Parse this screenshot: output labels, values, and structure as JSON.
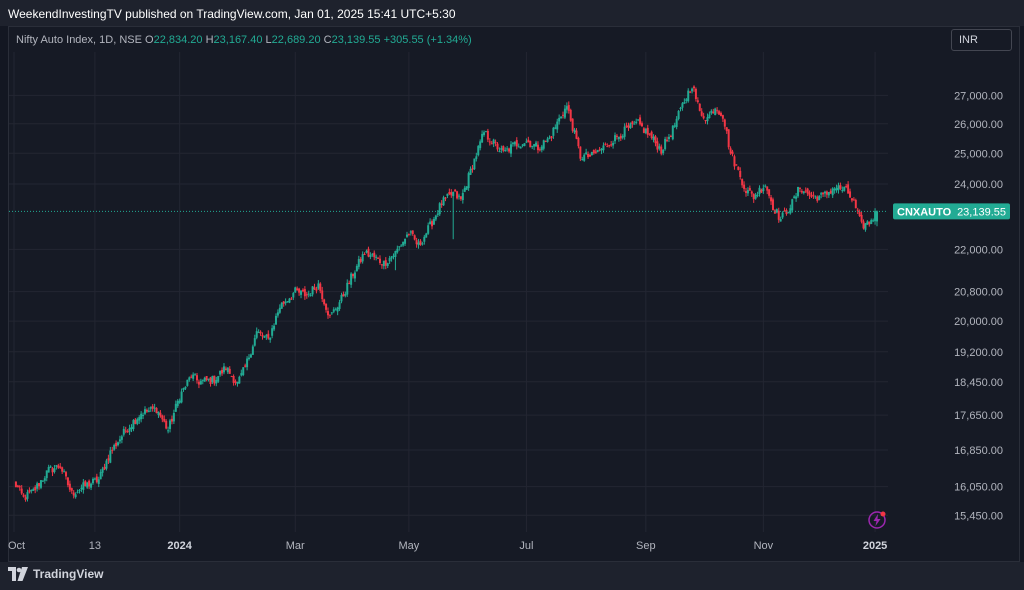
{
  "header": {
    "published_text": "WeekendInvestingTV published on TradingView.com, Jan 01, 2025 15:41 UTC+5:30"
  },
  "legend": {
    "symbol": "Nifty Auto Index, 1D, NSE",
    "open_key": "O",
    "open": "22,834.20",
    "high_key": "H",
    "high": "23,167.40",
    "low_key": "L",
    "low": "22,689.20",
    "close_key": "C",
    "close": "23,139.55",
    "change": "+305.55 (+1.34%)"
  },
  "currency": "INR",
  "price_tag": {
    "symbol": "CNXAUTO",
    "value": "23,139.55"
  },
  "footer": {
    "brand": "TradingView"
  },
  "colors": {
    "background": "#131722",
    "up": "#22ab94",
    "down": "#f23645",
    "grid": "#232632",
    "axis_text": "#b2b5be"
  },
  "icons": {
    "brand": "tradingview-logo-icon",
    "alert": "lightning-icon"
  },
  "chart_data": {
    "type": "candlestick",
    "scale": "log",
    "title": "Nifty Auto Index, 1D, NSE",
    "ylabel": "",
    "ylim": [
      15150,
      28300
    ],
    "y_ticks": [
      {
        "value": 27000,
        "label": "27,000.00"
      },
      {
        "value": 26000,
        "label": "26,000.00"
      },
      {
        "value": 25000,
        "label": "25,000.00"
      },
      {
        "value": 24000,
        "label": "24,000.00"
      },
      {
        "value": 22000,
        "label": "22,000.00"
      },
      {
        "value": 20800,
        "label": "20,800.00"
      },
      {
        "value": 20000,
        "label": "20,000.00"
      },
      {
        "value": 19200,
        "label": "19,200.00"
      },
      {
        "value": 18450,
        "label": "18,450.00"
      },
      {
        "value": 17650,
        "label": "17,650.00"
      },
      {
        "value": 16850,
        "label": "16,850.00"
      },
      {
        "value": 16050,
        "label": "16,050.00"
      },
      {
        "value": 15450,
        "label": "15,450.00"
      }
    ],
    "x_ticks": [
      {
        "label": "Oct",
        "bold": false,
        "day": 0
      },
      {
        "label": "13",
        "bold": false,
        "day": 42
      },
      {
        "label": "2024",
        "bold": true,
        "day": 86
      },
      {
        "label": "Mar",
        "bold": false,
        "day": 146
      },
      {
        "label": "May",
        "bold": false,
        "day": 205
      },
      {
        "label": "Jul",
        "bold": false,
        "day": 266
      },
      {
        "label": "Sep",
        "bold": false,
        "day": 328
      },
      {
        "label": "Nov",
        "bold": false,
        "day": 389
      },
      {
        "label": "2025",
        "bold": true,
        "day": 447
      }
    ],
    "anchors": [
      {
        "day": 0,
        "price": 16150
      },
      {
        "day": 5,
        "price": 15800
      },
      {
        "day": 10,
        "price": 15950
      },
      {
        "day": 18,
        "price": 16400
      },
      {
        "day": 24,
        "price": 16500
      },
      {
        "day": 30,
        "price": 15900
      },
      {
        "day": 36,
        "price": 16050
      },
      {
        "day": 44,
        "price": 16200
      },
      {
        "day": 50,
        "price": 16800
      },
      {
        "day": 58,
        "price": 17300
      },
      {
        "day": 66,
        "price": 17700
      },
      {
        "day": 74,
        "price": 17800
      },
      {
        "day": 80,
        "price": 17300
      },
      {
        "day": 86,
        "price": 18100
      },
      {
        "day": 92,
        "price": 18600
      },
      {
        "day": 96,
        "price": 18450
      },
      {
        "day": 104,
        "price": 18500
      },
      {
        "day": 110,
        "price": 18800
      },
      {
        "day": 116,
        "price": 18400
      },
      {
        "day": 120,
        "price": 18800
      },
      {
        "day": 126,
        "price": 19700
      },
      {
        "day": 132,
        "price": 19500
      },
      {
        "day": 138,
        "price": 20400
      },
      {
        "day": 146,
        "price": 20800
      },
      {
        "day": 152,
        "price": 20700
      },
      {
        "day": 158,
        "price": 21000
      },
      {
        "day": 164,
        "price": 20100
      },
      {
        "day": 170,
        "price": 20600
      },
      {
        "day": 176,
        "price": 21300
      },
      {
        "day": 182,
        "price": 21900
      },
      {
        "day": 186,
        "price": 21800
      },
      {
        "day": 192,
        "price": 21600
      },
      {
        "day": 198,
        "price": 21900
      },
      {
        "day": 205,
        "price": 22500
      },
      {
        "day": 210,
        "price": 22100
      },
      {
        "day": 216,
        "price": 22700
      },
      {
        "day": 222,
        "price": 23400
      },
      {
        "day": 228,
        "price": 23700
      },
      {
        "day": 232,
        "price": 23500
      },
      {
        "day": 238,
        "price": 24600
      },
      {
        "day": 244,
        "price": 25700
      },
      {
        "day": 248,
        "price": 25400
      },
      {
        "day": 254,
        "price": 25000
      },
      {
        "day": 260,
        "price": 25300
      },
      {
        "day": 266,
        "price": 25400
      },
      {
        "day": 272,
        "price": 25200
      },
      {
        "day": 278,
        "price": 25500
      },
      {
        "day": 284,
        "price": 26300
      },
      {
        "day": 287,
        "price": 26600
      },
      {
        "day": 290,
        "price": 25900
      },
      {
        "day": 294,
        "price": 24900
      },
      {
        "day": 300,
        "price": 24900
      },
      {
        "day": 306,
        "price": 25200
      },
      {
        "day": 312,
        "price": 25500
      },
      {
        "day": 318,
        "price": 25800
      },
      {
        "day": 324,
        "price": 26000
      },
      {
        "day": 330,
        "price": 25600
      },
      {
        "day": 336,
        "price": 25100
      },
      {
        "day": 342,
        "price": 25800
      },
      {
        "day": 348,
        "price": 26800
      },
      {
        "day": 352,
        "price": 27400
      },
      {
        "day": 356,
        "price": 26400
      },
      {
        "day": 360,
        "price": 26200
      },
      {
        "day": 364,
        "price": 26600
      },
      {
        "day": 368,
        "price": 26300
      },
      {
        "day": 372,
        "price": 25000
      },
      {
        "day": 376,
        "price": 24400
      },
      {
        "day": 380,
        "price": 23800
      },
      {
        "day": 384,
        "price": 23600
      },
      {
        "day": 390,
        "price": 24000
      },
      {
        "day": 394,
        "price": 23300
      },
      {
        "day": 398,
        "price": 22900
      },
      {
        "day": 404,
        "price": 23400
      },
      {
        "day": 408,
        "price": 23900
      },
      {
        "day": 414,
        "price": 23600
      },
      {
        "day": 420,
        "price": 23600
      },
      {
        "day": 426,
        "price": 23900
      },
      {
        "day": 432,
        "price": 23800
      },
      {
        "day": 436,
        "price": 23400
      },
      {
        "day": 440,
        "price": 22700
      },
      {
        "day": 444,
        "price": 22800
      },
      {
        "day": 448,
        "price": 23139.55
      }
    ],
    "spikes": [
      {
        "day": 198,
        "low": 21400
      },
      {
        "day": 228,
        "low": 22300
      }
    ],
    "last_price": 23139.55,
    "last_bar": {
      "open": 22834.2,
      "high": 23167.4,
      "low": 22689.2,
      "close": 23139.55
    },
    "grid": true,
    "legend": "top-left"
  }
}
